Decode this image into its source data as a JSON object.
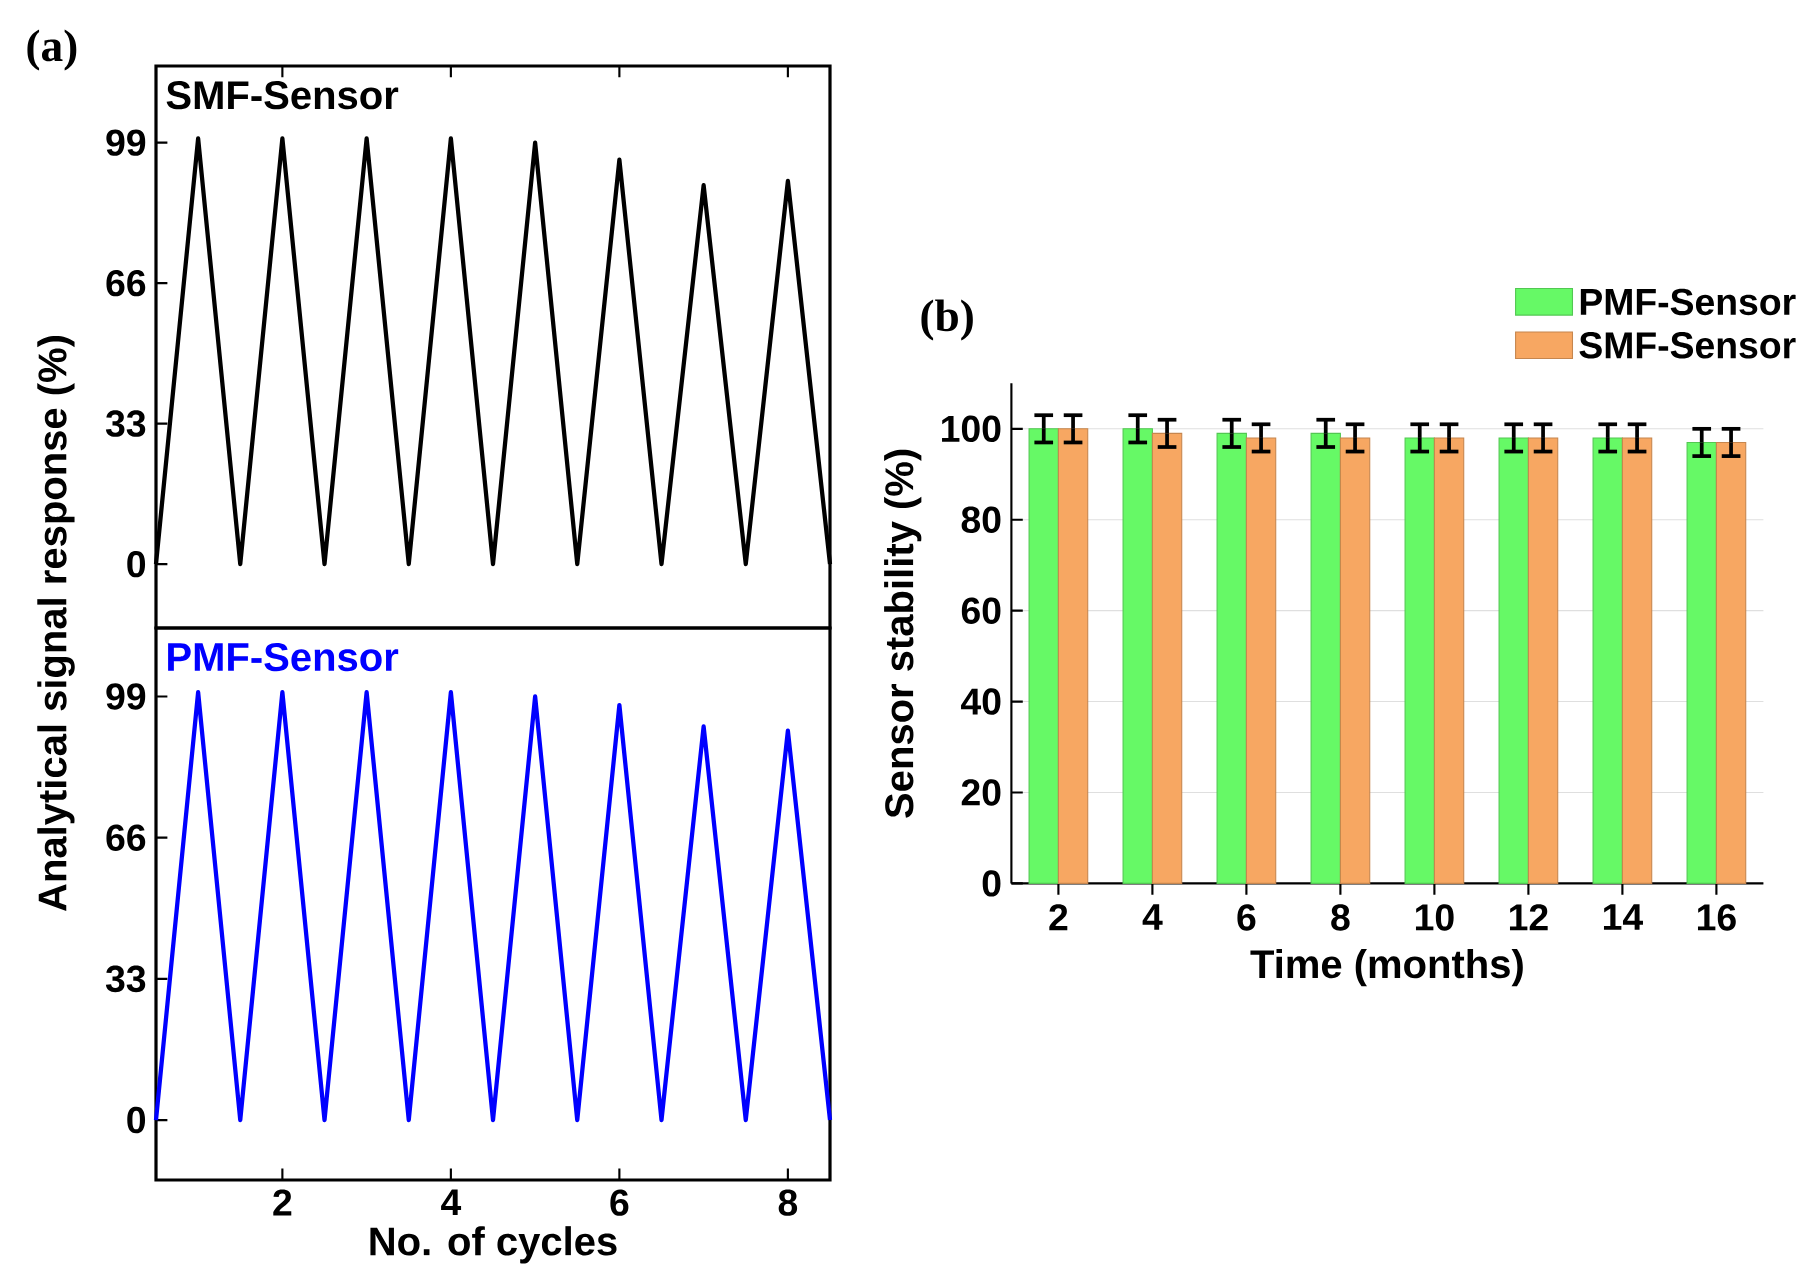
{
  "chart_data": [
    {
      "type": "line",
      "annotations": [
        "(a)"
      ],
      "ylabel": "Analytical signal response (%)",
      "xlim": [
        0.5,
        8.5
      ],
      "xticks": [
        2,
        4,
        6,
        8
      ],
      "ylim": [
        -15,
        117
      ],
      "yticks": [
        0,
        33,
        66,
        99
      ],
      "tick_labels": "y",
      "line_style": "solid",
      "marker": "none",
      "series": [
        {
          "name": "SMF-Sensor",
          "color": "#000000",
          "x": [
            0.5,
            1,
            1.5,
            2,
            2.5,
            3,
            3.5,
            4,
            4.5,
            5,
            5.5,
            6,
            6.5,
            7,
            7.5,
            8,
            8.5
          ],
          "values": [
            0,
            100,
            0,
            100,
            0,
            100,
            0,
            100,
            0,
            99,
            0,
            95,
            0,
            89,
            0,
            90,
            0
          ]
        }
      ]
    },
    {
      "type": "line",
      "xlabel": "No. of cycles",
      "xlim": [
        0.5,
        8.5
      ],
      "xticks": [
        2,
        4,
        6,
        8
      ],
      "ylim": [
        -14,
        115
      ],
      "yticks": [
        0,
        33,
        66,
        99
      ],
      "line_style": "solid",
      "marker": "none",
      "series": [
        {
          "name": "PMF-Sensor",
          "color": "#0000ff",
          "x": [
            0.5,
            1,
            1.5,
            2,
            2.5,
            3,
            3.5,
            4,
            4.5,
            5,
            5.5,
            6,
            6.5,
            7,
            7.5,
            8,
            8.5
          ],
          "values": [
            0,
            100,
            0,
            100,
            0,
            100,
            0,
            100,
            0,
            99,
            0,
            97,
            0,
            92,
            0,
            91,
            0
          ]
        }
      ]
    },
    {
      "type": "bar",
      "annotations": [
        "(b)"
      ],
      "xlabel": "Time (months)",
      "ylabel": "Sensor stability (%)",
      "categories": [
        "2",
        "4",
        "6",
        "8",
        "10",
        "12",
        "14",
        "16"
      ],
      "ylim": [
        0,
        110
      ],
      "yticks": [
        0,
        20,
        40,
        60,
        80,
        100
      ],
      "grid": "y",
      "legend": "top right",
      "series": [
        {
          "name": "PMF-Sensor",
          "color": "#66f966",
          "values": [
            100,
            100,
            99,
            99,
            98,
            98,
            98,
            97
          ],
          "errors": [
            3,
            3,
            3,
            3,
            3,
            3,
            3,
            3
          ]
        },
        {
          "name": "SMF-Sensor",
          "color": "#f7a762",
          "values": [
            100,
            99,
            98,
            98,
            98,
            98,
            98,
            97
          ],
          "errors": [
            3,
            3,
            3,
            3,
            3,
            3,
            3,
            3
          ]
        }
      ]
    }
  ]
}
